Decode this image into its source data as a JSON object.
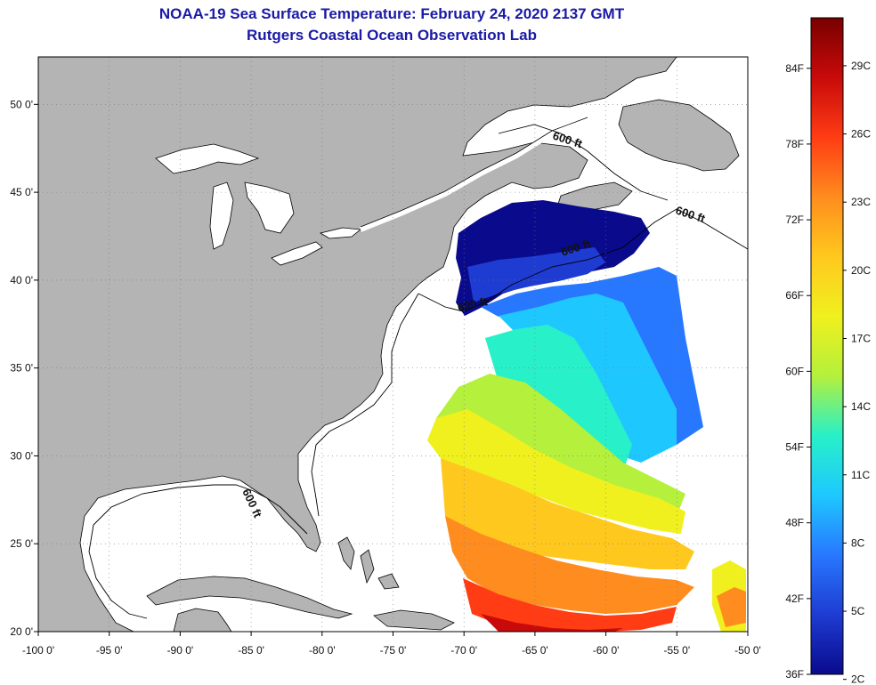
{
  "title": "NOAA-19 Sea Surface Temperature:  February 24, 2020 2137 GMT",
  "subtitle": "Rutgers Coastal Ocean Observation Lab",
  "lon_ticks": [
    "-100 0'",
    "-95 0'",
    "-90 0'",
    "-85 0'",
    "-80 0'",
    "-75 0'",
    "-70 0'",
    "-65 0'",
    "-60 0'",
    "-55 0'",
    "-50 0'"
  ],
  "lat_ticks": [
    "50 0'",
    "45 0'",
    "40 0'",
    "35 0'",
    "30 0'",
    "25 0'",
    "20 0'"
  ],
  "contour_labels": [
    "600 ft",
    "600 ft",
    "600 ft",
    "600 ft",
    "600 ft"
  ],
  "colorbar": {
    "fahrenheit": [
      "84F",
      "78F",
      "72F",
      "66F",
      "60F",
      "54F",
      "48F",
      "42F",
      "36F"
    ],
    "celsius": [
      "29C",
      "26C",
      "23C",
      "20C",
      "17C",
      "14C",
      "11C",
      "8C",
      "5C",
      "2C"
    ]
  },
  "colors": {
    "land": "#b4b4b4",
    "title": "#1a1aa6",
    "scale": [
      "#0a0a8c",
      "#1e3cd2",
      "#2878ff",
      "#1ec8ff",
      "#28f0c8",
      "#b4f03c",
      "#f0f01e",
      "#ffc81e",
      "#ff8c1e",
      "#ff3c14",
      "#c80a0a",
      "#780000"
    ]
  }
}
